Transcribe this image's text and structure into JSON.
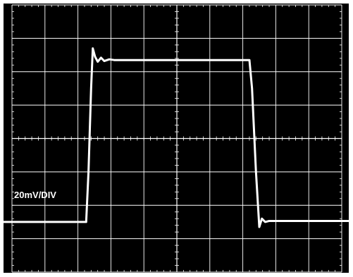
{
  "chart_data": {
    "type": "line",
    "title": "",
    "xlabel": "",
    "ylabel": "",
    "annotations": {
      "vertical_scale": "20mV/DIV"
    },
    "grid": true,
    "divisions": {
      "x": 10,
      "y": 8
    },
    "xlim": [
      0,
      10
    ],
    "ylim": [
      -4,
      4
    ],
    "colors": {
      "background": "#000000",
      "trace": "#ffffff",
      "grid": "#ffffff",
      "frame": "#ffffff"
    },
    "series": [
      {
        "x": [
          0,
          2.25,
          2.32,
          2.4,
          2.45,
          2.52,
          2.6,
          2.7,
          2.8,
          2.95,
          3.1,
          3.4,
          7.2,
          7.28,
          7.4,
          7.5,
          7.58,
          7.68,
          7.8,
          10
        ],
        "y": [
          -2.5,
          -2.5,
          -1.0,
          1.5,
          2.7,
          2.45,
          2.3,
          2.42,
          2.32,
          2.37,
          2.35,
          2.35,
          2.35,
          1.5,
          -1.0,
          -2.65,
          -2.4,
          -2.5,
          -2.47,
          -2.47
        ]
      }
    ]
  }
}
